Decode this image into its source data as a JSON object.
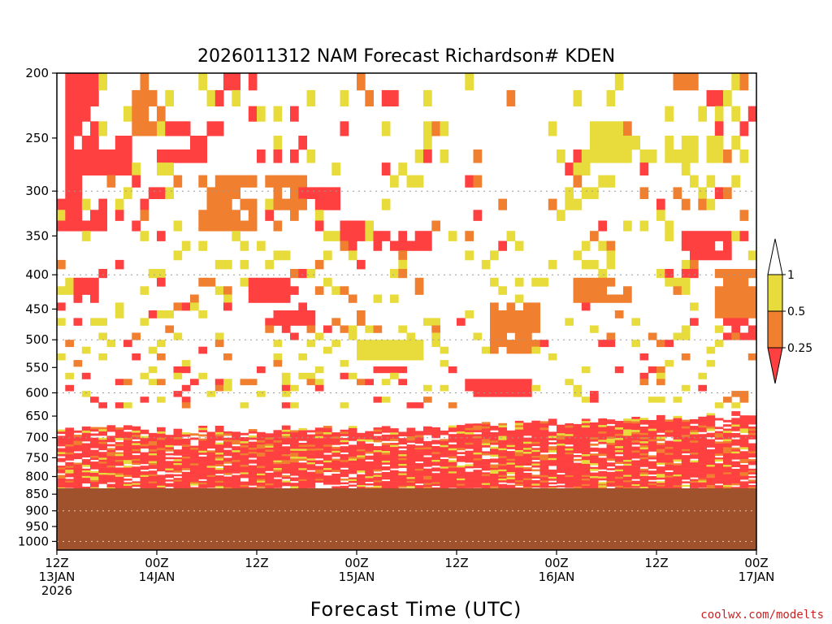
{
  "chart_data": {
    "type": "heatmap",
    "title": "2026011312 NAM Forecast Richardson# KDEN",
    "xlabel": "Forecast Time (UTC)",
    "ylabel": "",
    "credit": "coolwx.com/modelts",
    "x_ticks": [
      {
        "hour": 0,
        "line1": "12Z",
        "line2": "13JAN",
        "line3": "2026"
      },
      {
        "hour": 12,
        "line1": "00Z",
        "line2": "14JAN",
        "line3": ""
      },
      {
        "hour": 24,
        "line1": "12Z",
        "line2": "",
        "line3": ""
      },
      {
        "hour": 36,
        "line1": "00Z",
        "line2": "15JAN",
        "line3": ""
      },
      {
        "hour": 48,
        "line1": "12Z",
        "line2": "",
        "line3": ""
      },
      {
        "hour": 60,
        "line1": "00Z",
        "line2": "16JAN",
        "line3": ""
      },
      {
        "hour": 72,
        "line1": "12Z",
        "line2": "",
        "line3": ""
      },
      {
        "hour": 84,
        "line1": "00Z",
        "line2": "17JAN",
        "line3": ""
      }
    ],
    "xlim": [
      0,
      84
    ],
    "y_ticks": [
      "200",
      "250",
      "300",
      "350",
      "400",
      "450",
      "500",
      "550",
      "600",
      "650",
      "700",
      "750",
      "800",
      "850",
      "900",
      "950",
      "1000"
    ],
    "ylim": [
      1030,
      200
    ],
    "y_scale": "log-pressure (hPa)",
    "dotted_levels": [
      300,
      400,
      500,
      600,
      700,
      900,
      1000
    ],
    "surface_pressure": 833,
    "surface_color": "#a0522d",
    "legend": {
      "labels": [
        "1",
        "0.5",
        "0.25"
      ],
      "bins": [
        {
          "label": "Ri < 0.25",
          "color": "#ff4040"
        },
        {
          "label": "0.25 - 0.5",
          "color": "#f08030"
        },
        {
          "label": "0.5 - 1",
          "color": "#e8dc3c"
        },
        {
          "label": "> 1",
          "color": "#ffffff"
        }
      ]
    },
    "bin_colors": [
      "#ffffff",
      "#e8dc3c",
      "#f08030",
      "#ff4040"
    ],
    "bands": [
      {
        "p_top": 205,
        "p_bot": 290,
        "hours": [
          1,
          5
        ],
        "bin": 3
      },
      {
        "p_top": 245,
        "p_bot": 280,
        "hours": [
          3,
          9
        ],
        "bin": 3
      },
      {
        "p_top": 215,
        "p_bot": 245,
        "hours": [
          9,
          12
        ],
        "bin": 2
      },
      {
        "p_top": 240,
        "p_bot": 275,
        "hours": [
          13,
          18
        ],
        "bin": 3
      },
      {
        "p_top": 290,
        "p_bot": 340,
        "hours": [
          17,
          24
        ],
        "bin": 2
      },
      {
        "p_top": 290,
        "p_bot": 320,
        "hours": [
          26,
          30
        ],
        "bin": 2
      },
      {
        "p_top": 200,
        "p_bot": 215,
        "hours": [
          1,
          3
        ],
        "bin": 3
      },
      {
        "p_top": 200,
        "p_bot": 215,
        "hours": [
          20,
          23
        ],
        "bin": 3
      },
      {
        "p_top": 310,
        "p_bot": 345,
        "hours": [
          0,
          6
        ],
        "bin": 3
      },
      {
        "p_top": 295,
        "p_bot": 320,
        "hours": [
          29,
          34
        ],
        "bin": 3
      },
      {
        "p_top": 330,
        "p_bot": 350,
        "hours": [
          34,
          37
        ],
        "bin": 3
      },
      {
        "p_top": 350,
        "p_bot": 370,
        "hours": [
          38,
          45
        ],
        "bin": 3
      },
      {
        "p_top": 410,
        "p_bot": 440,
        "hours": [
          2,
          5
        ],
        "bin": 3
      },
      {
        "p_top": 410,
        "p_bot": 440,
        "hours": [
          23,
          28
        ],
        "bin": 3
      },
      {
        "p_top": 450,
        "p_bot": 470,
        "hours": [
          25,
          31
        ],
        "bin": 3
      },
      {
        "p_top": 440,
        "p_bot": 520,
        "hours": [
          52,
          58
        ],
        "bin": 2
      },
      {
        "p_top": 400,
        "p_bot": 440,
        "hours": [
          62,
          69
        ],
        "bin": 2
      },
      {
        "p_top": 255,
        "p_bot": 275,
        "hours": [
          63,
          68
        ],
        "bin": 1
      },
      {
        "p_top": 245,
        "p_bot": 270,
        "hours": [
          73,
          80
        ],
        "bin": 1
      },
      {
        "p_top": 340,
        "p_bot": 380,
        "hours": [
          75,
          81
        ],
        "bin": 3
      },
      {
        "p_top": 395,
        "p_bot": 460,
        "hours": [
          79,
          84
        ],
        "bin": 2
      },
      {
        "p_top": 460,
        "p_bot": 495,
        "hours": [
          80,
          84
        ],
        "bin": 3
      },
      {
        "p_top": 545,
        "p_bot": 565,
        "hours": [
          38,
          42
        ],
        "bin": 3
      },
      {
        "p_top": 575,
        "p_bot": 610,
        "hours": [
          49,
          57
        ],
        "bin": 3
      },
      {
        "p_top": 200,
        "p_bot": 215,
        "hours": [
          75,
          78
        ],
        "bin": 2
      },
      {
        "p_top": 240,
        "p_bot": 260,
        "hours": [
          64,
          69
        ],
        "bin": 1
      },
      {
        "p_top": 500,
        "p_bot": 540,
        "hours": [
          36,
          44
        ],
        "bin": 1
      },
      {
        "p_top": 200,
        "p_bot": 215,
        "hours": [
          82,
          84
        ],
        "bin": 2
      }
    ],
    "low_layer": {
      "top_start": 640,
      "top_end": 650,
      "dense_top": 680,
      "bottom": 830,
      "ri_below_0_25_fraction": 0.7
    }
  }
}
